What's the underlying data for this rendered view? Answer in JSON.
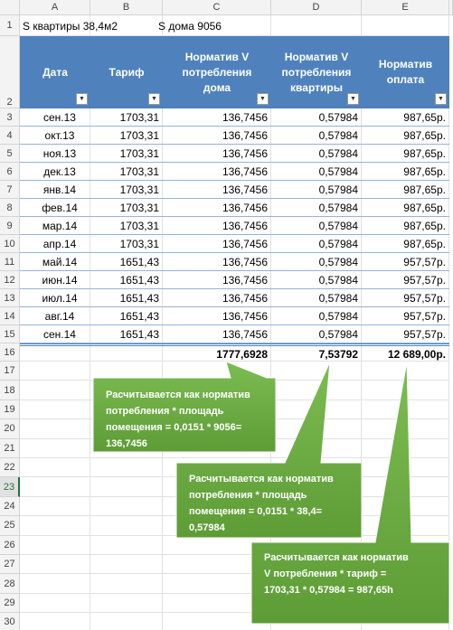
{
  "column_headers": [
    "A",
    "B",
    "C",
    "D",
    "E"
  ],
  "row_headers": [
    1,
    2,
    3,
    4,
    5,
    6,
    7,
    8,
    9,
    10,
    11,
    12,
    13,
    14,
    15,
    16,
    17,
    18,
    19,
    20,
    21,
    22,
    23,
    24,
    25,
    26,
    27,
    28,
    29,
    30
  ],
  "row1": {
    "area_flat": "S квартиры 38,4м2",
    "area_house": "S дома 9056"
  },
  "table": {
    "header": [
      [
        "Дата"
      ],
      [
        "Тариф"
      ],
      [
        "Норматив V",
        "потребления",
        "дома"
      ],
      [
        "Норматив V",
        "потребления",
        "квартиры"
      ],
      [
        "Норматив",
        "оплата"
      ]
    ],
    "rows": [
      [
        "сен.13",
        "1703,31",
        "136,7456",
        "0,57984",
        "987,65р."
      ],
      [
        "окт.13",
        "1703,31",
        "136,7456",
        "0,57984",
        "987,65р."
      ],
      [
        "ноя.13",
        "1703,31",
        "136,7456",
        "0,57984",
        "987,65р."
      ],
      [
        "дек.13",
        "1703,31",
        "136,7456",
        "0,57984",
        "987,65р."
      ],
      [
        "янв.14",
        "1703,31",
        "136,7456",
        "0,57984",
        "987,65р."
      ],
      [
        "фев.14",
        "1703,31",
        "136,7456",
        "0,57984",
        "987,65р."
      ],
      [
        "мар.14",
        "1703,31",
        "136,7456",
        "0,57984",
        "987,65р."
      ],
      [
        "апр.14",
        "1703,31",
        "136,7456",
        "0,57984",
        "987,65р."
      ],
      [
        "май.14",
        "1651,43",
        "136,7456",
        "0,57984",
        "957,57р."
      ],
      [
        "июн.14",
        "1651,43",
        "136,7456",
        "0,57984",
        "957,57р."
      ],
      [
        "июл.14",
        "1651,43",
        "136,7456",
        "0,57984",
        "957,57р."
      ],
      [
        "авг.14",
        "1651,43",
        "136,7456",
        "0,57984",
        "957,57р."
      ],
      [
        "сен.14",
        "1651,43",
        "136,7456",
        "0,57984",
        "957,57р."
      ]
    ],
    "totals": [
      "1777,6928",
      "7,53792",
      "12 689,00р."
    ]
  },
  "callouts": [
    {
      "lines": [
        "Расчитывается как норматив",
        "потребления * площадь",
        "помещения = 0,0151 * 9056=",
        "136,7456"
      ]
    },
    {
      "lines": [
        "Расчитывается как норматив",
        "потребления * площадь",
        "помещения = 0,0151 * 38,4=",
        "0,57984"
      ]
    },
    {
      "lines": [
        "Расчитывается как норматив",
        "V потребления * тариф =",
        "1703,31 * 0,57984 = 987,65h"
      ]
    }
  ]
}
